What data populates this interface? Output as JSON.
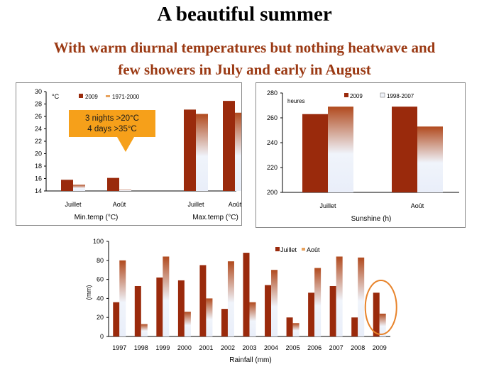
{
  "slide": {
    "title": "A beautiful summer",
    "subtitle_line1": "With warm diurnal temperatures but nothing heatwave and",
    "subtitle_line2": "few showers in July and early in August"
  },
  "colors": {
    "dark": "#9a2a0c",
    "light_top": "#e8a35e",
    "light_bottom": "#eef2fb",
    "callout": "#f6a01a",
    "circle": "#e8832a"
  },
  "chart_data": [
    {
      "type": "bar",
      "unit_label": "°C",
      "legend": [
        "2009",
        "1971-2000"
      ],
      "groups": [
        {
          "label": "Min.temp (°C)",
          "categories": [
            "Juillet",
            "Août"
          ],
          "series": [
            {
              "name": "2009",
              "values": [
                15.8,
                16.1
              ]
            },
            {
              "name": "1971-2000",
              "values": [
                15.0,
                14.2
              ]
            }
          ]
        },
        {
          "label": "Max.temp (°C)",
          "categories": [
            "Juillet",
            "Août"
          ],
          "series": [
            {
              "name": "2009",
              "values": [
                27.1,
                28.5
              ]
            },
            {
              "name": "1971-2000",
              "values": [
                26.4,
                26.6
              ]
            }
          ]
        }
      ],
      "yticks": [
        "30",
        "28",
        "26",
        "24",
        "22",
        "20",
        "18",
        "16",
        "14"
      ],
      "ylim": [
        14,
        30
      ],
      "annotation": {
        "line1": "3 nights >20°C",
        "line2": "4 days >35°C"
      }
    },
    {
      "type": "bar",
      "unit_label": "heures",
      "legend": [
        "2009",
        "1998-2007"
      ],
      "categories": [
        "Juillet",
        "Août"
      ],
      "series": [
        {
          "name": "2009",
          "values": [
            263,
            269
          ]
        },
        {
          "name": "1998-2007",
          "values": [
            269,
            253
          ]
        }
      ],
      "yticks": [
        "280",
        "260",
        "240",
        "220",
        "200"
      ],
      "ylim": [
        200,
        280
      ],
      "xlabel": "Sunshine (h)"
    },
    {
      "type": "bar",
      "ylabel": "(mm)",
      "xlabel": "Rainfall (mm)",
      "legend": [
        "Juillet",
        "Août"
      ],
      "categories": [
        "1997",
        "1998",
        "1999",
        "2000",
        "2001",
        "2002",
        "2003",
        "2004",
        "2005",
        "2006",
        "2007",
        "2008",
        "2009"
      ],
      "series": [
        {
          "name": "Juillet",
          "values": [
            36,
            53,
            62,
            59,
            75,
            29,
            88,
            54,
            20,
            46,
            53,
            20,
            46
          ]
        },
        {
          "name": "Août",
          "values": [
            80,
            13,
            84,
            26,
            40,
            79,
            36,
            70,
            14,
            72,
            84,
            83,
            24
          ]
        }
      ],
      "yticks": [
        "100",
        "80",
        "60",
        "40",
        "20",
        "0"
      ],
      "ylim": [
        0,
        100
      ]
    }
  ]
}
